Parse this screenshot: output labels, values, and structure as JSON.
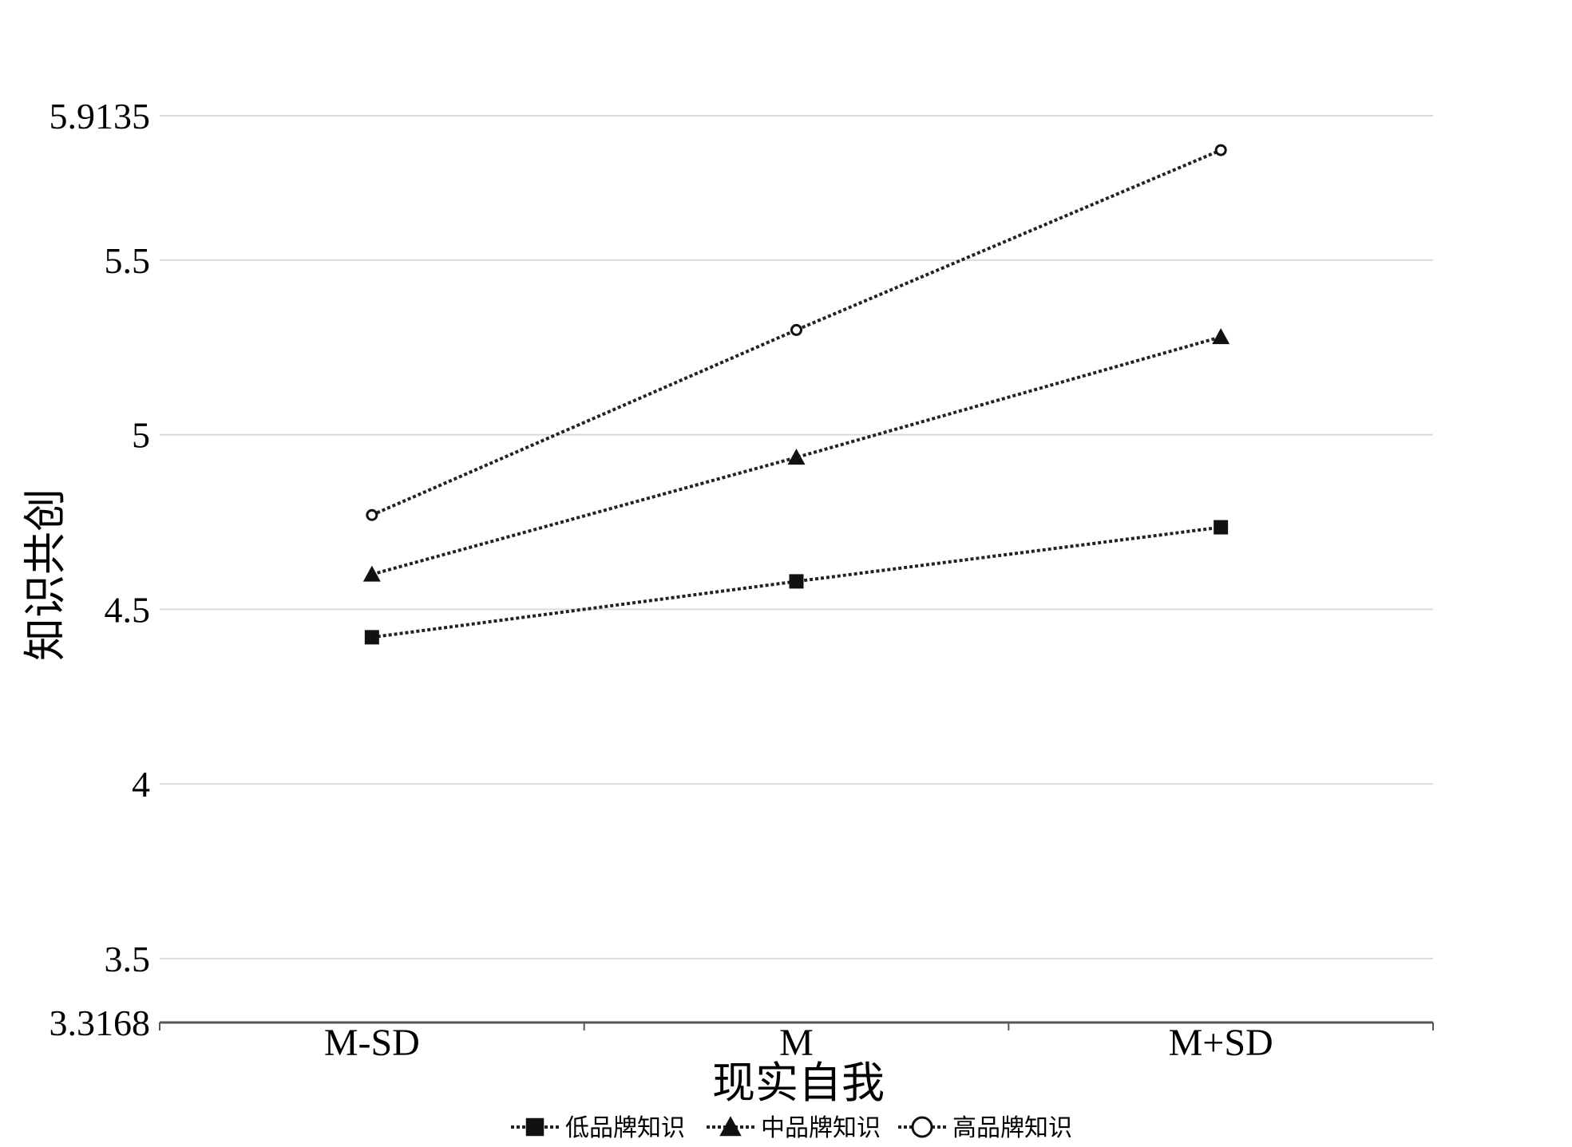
{
  "chart_data": {
    "type": "line",
    "categories": [
      "M-SD",
      "M",
      "M+SD"
    ],
    "series": [
      {
        "name": "低品牌知识",
        "marker": "square",
        "values": [
          4.42,
          4.58,
          4.735
        ]
      },
      {
        "name": "中品牌知识",
        "marker": "triangle",
        "values": [
          4.6,
          4.935,
          5.28
        ]
      },
      {
        "name": "高品牌知识",
        "marker": "circle",
        "values": [
          4.77,
          5.3,
          5.815
        ]
      }
    ],
    "xlabel": "现实自我",
    "ylabel": "知识共创",
    "ylim": [
      3.3168,
      5.9135
    ],
    "yticks": [
      "3.3168",
      "3.5",
      "4",
      "4.5",
      "5",
      "5.5",
      "5.9135"
    ],
    "grid": true,
    "legend_position": "bottom",
    "colors": {
      "line": "#222222",
      "marker": "#111111",
      "grid": "#d9d9e6",
      "axis": "#555555"
    }
  }
}
